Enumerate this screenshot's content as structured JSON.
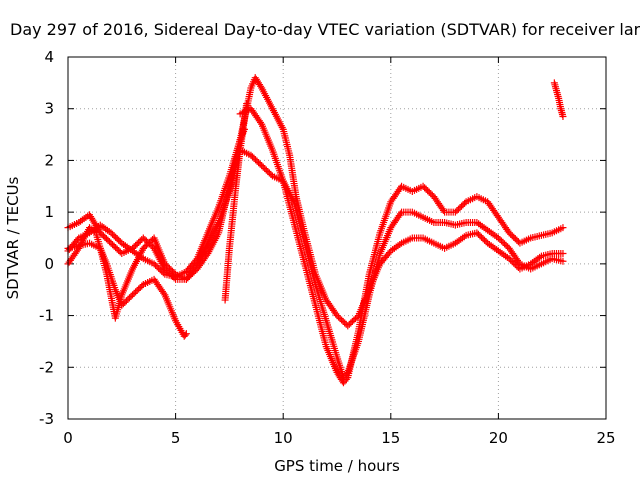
{
  "chart_data": {
    "type": "scatter",
    "title": "Day 297 of 2016, Sidereal Day-to-day VTEC variation (SDTVAR) for receiver lar",
    "xlabel": "GPS time / hours",
    "ylabel": "SDTVAR / TECUs",
    "xlim": [
      0,
      25
    ],
    "ylim": [
      -3,
      4
    ],
    "xticks": [
      0,
      5,
      10,
      15,
      20,
      25
    ],
    "yticks": [
      -3,
      -2,
      -1,
      0,
      1,
      2,
      3,
      4
    ],
    "grid": true,
    "marker": "+",
    "color": "#ff0000",
    "series": [
      {
        "values": [
          [
            0.0,
            0.3
          ],
          [
            0.5,
            0.35
          ],
          [
            1.0,
            0.4
          ],
          [
            1.5,
            0.3
          ],
          [
            1.8,
            0.0
          ],
          [
            2.2,
            -0.5
          ],
          [
            2.5,
            -0.8
          ],
          [
            3.0,
            -0.6
          ],
          [
            3.5,
            -0.4
          ],
          [
            4.0,
            -0.3
          ],
          [
            4.5,
            -0.6
          ],
          [
            5.0,
            -1.1
          ],
          [
            5.4,
            -1.4
          ],
          [
            5.5,
            -1.35
          ]
        ]
      },
      {
        "values": [
          [
            0.0,
            0.0
          ],
          [
            0.5,
            0.3
          ],
          [
            1.0,
            0.7
          ],
          [
            1.3,
            0.6
          ],
          [
            1.5,
            0.3
          ],
          [
            1.8,
            -0.2
          ],
          [
            2.2,
            -1.05
          ],
          [
            2.5,
            -0.6
          ],
          [
            3.0,
            -0.1
          ],
          [
            3.5,
            0.3
          ],
          [
            4.0,
            0.5
          ],
          [
            4.5,
            0.0
          ],
          [
            5.0,
            -0.2
          ],
          [
            5.5,
            -0.3
          ],
          [
            6.0,
            -0.1
          ],
          [
            6.5,
            0.2
          ],
          [
            7.0,
            0.6
          ],
          [
            7.5,
            1.5
          ],
          [
            8.0,
            2.4
          ],
          [
            8.2,
            2.6
          ]
        ]
      },
      {
        "values": [
          [
            0.0,
            0.7
          ],
          [
            0.5,
            0.8
          ],
          [
            1.0,
            0.95
          ],
          [
            1.5,
            0.6
          ],
          [
            2.0,
            0.4
          ],
          [
            2.5,
            0.2
          ],
          [
            3.0,
            0.3
          ],
          [
            3.5,
            0.5
          ],
          [
            4.0,
            0.3
          ],
          [
            4.5,
            -0.1
          ],
          [
            5.0,
            -0.3
          ],
          [
            5.5,
            -0.3
          ],
          [
            6.0,
            0.0
          ],
          [
            6.5,
            0.4
          ],
          [
            7.0,
            0.8
          ],
          [
            7.5,
            1.4
          ],
          [
            8.0,
            2.2
          ],
          [
            8.3,
            3.1
          ]
        ]
      },
      {
        "values": [
          [
            0.0,
            0.25
          ],
          [
            0.5,
            0.5
          ],
          [
            1.0,
            0.6
          ],
          [
            1.5,
            0.75
          ],
          [
            2.0,
            0.6
          ],
          [
            2.5,
            0.4
          ],
          [
            3.0,
            0.25
          ],
          [
            3.5,
            0.1
          ],
          [
            4.0,
            0.0
          ],
          [
            4.5,
            -0.2
          ],
          [
            5.0,
            -0.25
          ],
          [
            5.5,
            -0.15
          ],
          [
            6.0,
            0.1
          ],
          [
            6.5,
            0.6
          ],
          [
            7.0,
            1.1
          ],
          [
            7.5,
            1.7
          ],
          [
            8.0,
            2.4
          ],
          [
            8.5,
            3.4
          ],
          [
            8.7,
            3.6
          ],
          [
            9.0,
            3.4
          ],
          [
            9.5,
            3.0
          ],
          [
            10.0,
            2.6
          ],
          [
            10.3,
            2.1
          ],
          [
            10.6,
            1.3
          ],
          [
            11.0,
            0.6
          ],
          [
            11.5,
            -0.2
          ],
          [
            12.0,
            -0.7
          ],
          [
            12.5,
            -1.0
          ],
          [
            13.0,
            -1.2
          ],
          [
            13.5,
            -1.0
          ],
          [
            14.0,
            -0.5
          ],
          [
            14.5,
            0.0
          ],
          [
            15.0,
            0.25
          ],
          [
            15.5,
            0.4
          ],
          [
            16.0,
            0.5
          ],
          [
            16.5,
            0.5
          ],
          [
            17.0,
            0.4
          ],
          [
            17.5,
            0.3
          ],
          [
            18.0,
            0.4
          ],
          [
            18.5,
            0.55
          ],
          [
            19.0,
            0.6
          ],
          [
            19.5,
            0.4
          ],
          [
            20.0,
            0.25
          ],
          [
            20.5,
            0.1
          ],
          [
            21.0,
            -0.1
          ],
          [
            21.5,
            0.0
          ],
          [
            22.0,
            0.15
          ],
          [
            22.5,
            0.2
          ],
          [
            23.0,
            0.2
          ]
        ]
      },
      {
        "values": [
          [
            7.3,
            -0.7
          ],
          [
            7.5,
            0.3
          ],
          [
            7.8,
            1.5
          ],
          [
            8.0,
            2.2
          ],
          [
            8.5,
            2.1
          ],
          [
            9.0,
            1.9
          ],
          [
            9.5,
            1.7
          ],
          [
            10.0,
            1.6
          ],
          [
            10.5,
            1.2
          ],
          [
            11.0,
            0.4
          ],
          [
            11.5,
            -0.4
          ],
          [
            12.0,
            -1.1
          ],
          [
            12.5,
            -1.8
          ],
          [
            12.8,
            -2.2
          ],
          [
            13.0,
            -2.1
          ],
          [
            13.5,
            -1.5
          ],
          [
            14.0,
            -0.6
          ],
          [
            14.5,
            0.2
          ],
          [
            15.0,
            0.7
          ],
          [
            15.5,
            1.0
          ],
          [
            16.0,
            1.0
          ],
          [
            16.5,
            0.9
          ],
          [
            17.0,
            0.8
          ],
          [
            17.5,
            0.8
          ],
          [
            18.0,
            0.75
          ],
          [
            18.5,
            0.8
          ],
          [
            19.0,
            0.8
          ],
          [
            19.5,
            0.65
          ],
          [
            20.0,
            0.5
          ],
          [
            20.5,
            0.3
          ],
          [
            21.0,
            0.0
          ],
          [
            21.5,
            -0.1
          ],
          [
            22.0,
            0.0
          ],
          [
            22.5,
            0.1
          ],
          [
            23.0,
            0.05
          ]
        ]
      },
      {
        "values": [
          [
            8.0,
            2.9
          ],
          [
            8.5,
            3.0
          ],
          [
            9.0,
            2.7
          ],
          [
            9.5,
            2.2
          ],
          [
            10.0,
            1.6
          ],
          [
            10.5,
            0.8
          ],
          [
            11.0,
            0.0
          ],
          [
            11.5,
            -0.8
          ],
          [
            12.0,
            -1.6
          ],
          [
            12.5,
            -2.1
          ],
          [
            12.8,
            -2.3
          ],
          [
            13.0,
            -2.2
          ],
          [
            13.5,
            -1.3
          ],
          [
            14.0,
            -0.2
          ],
          [
            14.5,
            0.6
          ],
          [
            15.0,
            1.2
          ],
          [
            15.5,
            1.5
          ],
          [
            16.0,
            1.4
          ],
          [
            16.5,
            1.5
          ],
          [
            17.0,
            1.3
          ],
          [
            17.5,
            1.0
          ],
          [
            18.0,
            1.0
          ],
          [
            18.5,
            1.2
          ],
          [
            19.0,
            1.3
          ],
          [
            19.5,
            1.2
          ],
          [
            20.0,
            0.9
          ],
          [
            20.5,
            0.6
          ],
          [
            21.0,
            0.4
          ],
          [
            21.5,
            0.5
          ],
          [
            22.0,
            0.55
          ],
          [
            22.5,
            0.6
          ],
          [
            23.0,
            0.7
          ]
        ]
      },
      {
        "values": [
          [
            22.6,
            3.5
          ],
          [
            22.7,
            3.35
          ],
          [
            22.8,
            3.2
          ],
          [
            22.9,
            3.0
          ],
          [
            23.0,
            2.85
          ]
        ]
      }
    ]
  }
}
